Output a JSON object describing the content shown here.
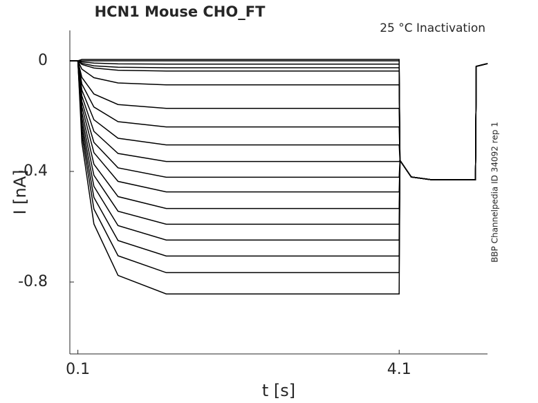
{
  "chart_data": {
    "type": "line",
    "title": "HCN1  Mouse  CHO_FT",
    "annotation": "25 °C  Inactivation",
    "side_note": "BBP Channelpedia ID 34092 rep 1",
    "xlabel": "t [s]",
    "ylabel": "I [nA]",
    "xlim": [
      0,
      5.2
    ],
    "ylim": [
      -1.06,
      0.11
    ],
    "xticks": [
      0.1,
      4.1
    ],
    "yticks": [
      0,
      -0.4,
      -0.8
    ],
    "color": "#000000",
    "x": [
      0,
      0.1,
      0.15,
      0.3,
      0.6,
      1.2,
      4.1,
      4.11,
      4.25,
      4.5,
      5.05,
      5.06,
      5.2
    ],
    "series": [
      {
        "values": [
          0,
          0,
          0.005,
          0.005,
          0.005,
          0.005,
          0.005,
          -0.36,
          -0.42,
          -0.43,
          -0.43,
          -0.02,
          -0.01
        ]
      },
      {
        "values": [
          0,
          0,
          0,
          0,
          0,
          0,
          0,
          -0.36,
          -0.42,
          -0.43,
          -0.43,
          -0.02,
          -0.01
        ]
      },
      {
        "values": [
          0,
          0,
          -0.004,
          -0.008,
          -0.011,
          -0.012,
          -0.012,
          -0.36,
          -0.42,
          -0.43,
          -0.43,
          -0.02,
          -0.01
        ]
      },
      {
        "values": [
          0,
          0,
          -0.009,
          -0.018,
          -0.023,
          -0.025,
          -0.025,
          -0.36,
          -0.42,
          -0.43,
          -0.43,
          -0.02,
          -0.01
        ]
      },
      {
        "values": [
          0,
          0,
          -0.013,
          -0.026,
          -0.034,
          -0.037,
          -0.037,
          -0.36,
          -0.42,
          -0.43,
          -0.43,
          -0.02,
          -0.01
        ]
      },
      {
        "values": [
          0,
          0,
          -0.03,
          -0.061,
          -0.08,
          -0.087,
          -0.087,
          -0.36,
          -0.42,
          -0.43,
          -0.43,
          -0.02,
          -0.01
        ]
      },
      {
        "values": [
          0,
          0,
          -0.06,
          -0.12,
          -0.158,
          -0.172,
          -0.172,
          -0.36,
          -0.42,
          -0.43,
          -0.43,
          -0.02,
          -0.01
        ]
      },
      {
        "values": [
          0,
          0,
          -0.084,
          -0.167,
          -0.22,
          -0.239,
          -0.239,
          -0.36,
          -0.42,
          -0.43,
          -0.43,
          -0.02,
          -0.01
        ]
      },
      {
        "values": [
          0,
          0,
          -0.106,
          -0.213,
          -0.28,
          -0.304,
          -0.304,
          -0.36,
          -0.42,
          -0.43,
          -0.43,
          -0.02,
          -0.01
        ]
      },
      {
        "values": [
          0,
          0,
          -0.127,
          -0.255,
          -0.335,
          -0.364,
          -0.364,
          -0.36,
          -0.42,
          -0.43,
          -0.43,
          -0.02,
          -0.01
        ]
      },
      {
        "values": [
          0,
          0,
          -0.147,
          -0.295,
          -0.387,
          -0.421,
          -0.421,
          -0.36,
          -0.42,
          -0.43,
          -0.43,
          -0.02,
          -0.01
        ]
      },
      {
        "values": [
          0,
          0,
          -0.166,
          -0.332,
          -0.436,
          -0.474,
          -0.474,
          -0.36,
          -0.42,
          -0.43,
          -0.43,
          -0.02,
          -0.01
        ]
      },
      {
        "values": [
          0,
          0,
          -0.187,
          -0.374,
          -0.491,
          -0.534,
          -0.534,
          -0.36,
          -0.42,
          -0.43,
          -0.43,
          -0.02,
          -0.01
        ]
      },
      {
        "values": [
          0,
          0,
          -0.207,
          -0.414,
          -0.544,
          -0.591,
          -0.591,
          -0.36,
          -0.42,
          -0.43,
          -0.43,
          -0.02,
          -0.01
        ]
      },
      {
        "values": [
          0,
          0,
          -0.227,
          -0.454,
          -0.596,
          -0.648,
          -0.648,
          -0.36,
          -0.42,
          -0.43,
          -0.43,
          -0.02,
          -0.01
        ]
      },
      {
        "values": [
          0,
          0,
          -0.247,
          -0.494,
          -0.65,
          -0.706,
          -0.706,
          -0.36,
          -0.42,
          -0.43,
          -0.43,
          -0.02,
          -0.01
        ]
      },
      {
        "values": [
          0,
          0,
          -0.268,
          -0.536,
          -0.705,
          -0.766,
          -0.766,
          -0.36,
          -0.42,
          -0.43,
          -0.43,
          -0.02,
          -0.01
        ]
      },
      {
        "values": [
          0,
          0,
          -0.295,
          -0.59,
          -0.776,
          -0.843,
          -0.843,
          -0.36,
          -0.42,
          -0.43,
          -0.43,
          -0.02,
          -0.01
        ]
      }
    ]
  }
}
